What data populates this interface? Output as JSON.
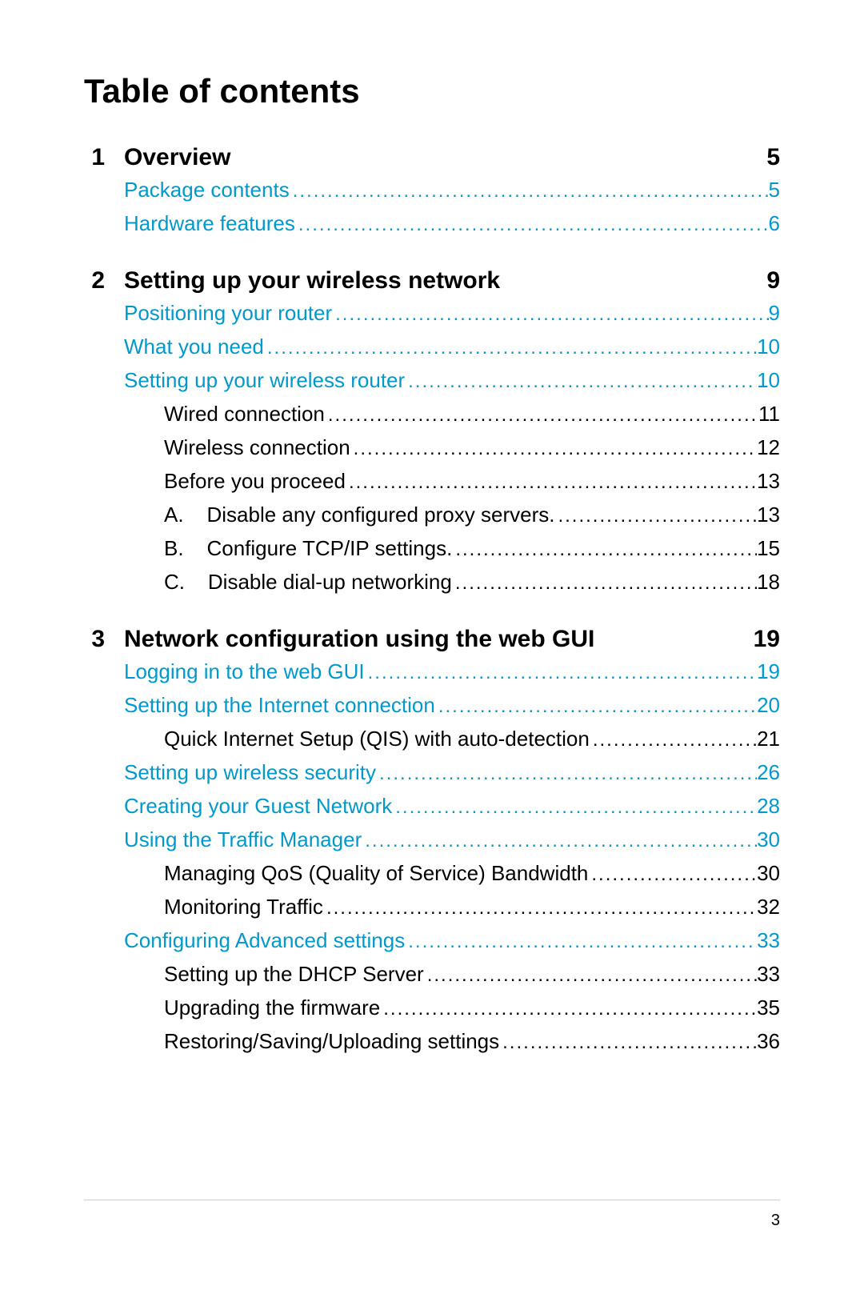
{
  "title": "Table of contents",
  "link_color": "#0099cc",
  "text_color": "#000000",
  "page_number": "3",
  "sections": [
    {
      "num": "1",
      "title": "Overview",
      "page": "5",
      "entries": [
        {
          "label": "Package contents",
          "page": "5",
          "indent": 0,
          "link": true,
          "prefix": ""
        },
        {
          "label": "Hardware features",
          "page": "6",
          "indent": 0,
          "link": true,
          "prefix": ""
        }
      ]
    },
    {
      "num": "2",
      "title": "Setting up your wireless network",
      "page": "9",
      "entries": [
        {
          "label": "Positioning your router",
          "page": "9",
          "indent": 0,
          "link": true,
          "prefix": ""
        },
        {
          "label": "What you need",
          "page": "10",
          "indent": 0,
          "link": true,
          "prefix": ""
        },
        {
          "label": "Setting up your wireless router",
          "page": "10",
          "indent": 0,
          "link": true,
          "prefix": ""
        },
        {
          "label": "Wired connection",
          "page": "11",
          "indent": 1,
          "link": false,
          "prefix": ""
        },
        {
          "label": "Wireless connection",
          "page": "12",
          "indent": 1,
          "link": false,
          "prefix": ""
        },
        {
          "label": "Before you proceed",
          "page": "13",
          "indent": 1,
          "link": false,
          "prefix": ""
        },
        {
          "label": "Disable any configured proxy servers.",
          "page": "13",
          "indent": 2,
          "link": false,
          "prefix": "A.    "
        },
        {
          "label": "Configure TCP/IP settings.",
          "page": "15",
          "indent": 2,
          "link": false,
          "prefix": "B.    "
        },
        {
          "label": "Disable dial-up networking",
          "page": "18",
          "indent": 2,
          "link": false,
          "prefix": "C.    "
        }
      ]
    },
    {
      "num": "3",
      "title": "Network configuration using the web GUI",
      "page": "19",
      "entries": [
        {
          "label": "Logging in to the web GUI",
          "page": "19",
          "indent": 0,
          "link": true,
          "prefix": ""
        },
        {
          "label": "Setting up the Internet connection",
          "page": "20",
          "indent": 0,
          "link": true,
          "prefix": ""
        },
        {
          "label": "Quick Internet Setup (QIS) with auto-detection",
          "page": "21",
          "indent": 1,
          "link": false,
          "prefix": ""
        },
        {
          "label": "Setting up wireless security",
          "page": "26",
          "indent": 0,
          "link": true,
          "prefix": ""
        },
        {
          "label": "Creating your Guest Network",
          "page": "28",
          "indent": 0,
          "link": true,
          "prefix": ""
        },
        {
          "label": "Using the Traffic Manager",
          "page": "30",
          "indent": 0,
          "link": true,
          "prefix": ""
        },
        {
          "label": "Managing QoS (Quality of Service) Bandwidth",
          "page": "30",
          "indent": 1,
          "link": false,
          "prefix": ""
        },
        {
          "label": "Monitoring Traffic",
          "page": "32",
          "indent": 1,
          "link": false,
          "prefix": ""
        },
        {
          "label": "Configuring Advanced settings",
          "page": "33",
          "indent": 0,
          "link": true,
          "prefix": ""
        },
        {
          "label": "Setting up the DHCP Server",
          "page": "33",
          "indent": 1,
          "link": false,
          "prefix": ""
        },
        {
          "label": "Upgrading the firmware",
          "page": "35",
          "indent": 1,
          "link": false,
          "prefix": ""
        },
        {
          "label": "Restoring/Saving/Uploading settings",
          "page": "36",
          "indent": 1,
          "link": false,
          "prefix": ""
        }
      ]
    }
  ]
}
